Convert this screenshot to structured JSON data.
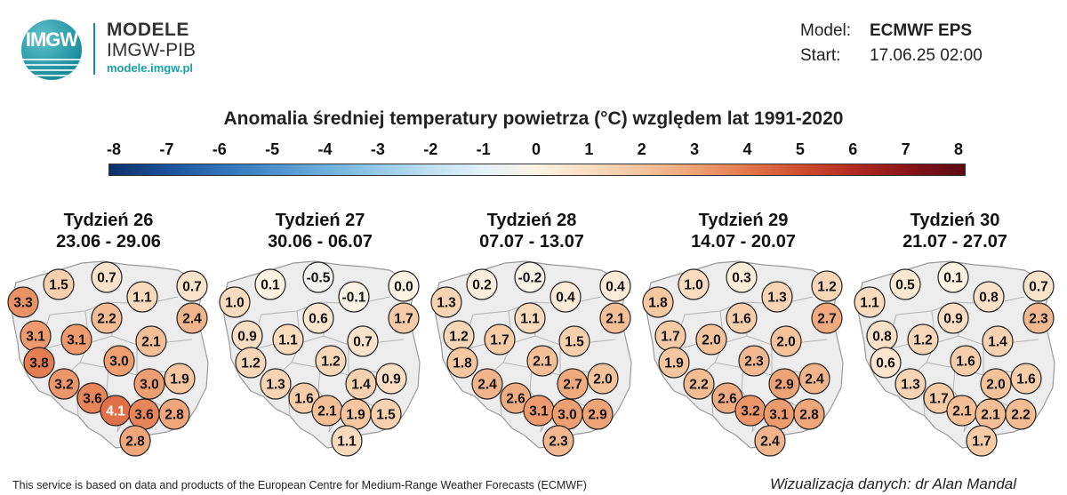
{
  "logo": {
    "text": "IMGW",
    "name": "MODELE",
    "org": "IMGW-PIB",
    "url": "modele.imgw.pl"
  },
  "meta": {
    "model_label": "Model:",
    "model_value": "ECMWF EPS",
    "start_label": "Start:",
    "start_value": "17.06.25 02:00"
  },
  "title": "Anomalia średniej temperatury powietrza (°C) względem lat 1991-2020",
  "scale": {
    "ticks": [
      "-8",
      "-7",
      "-6",
      "-5",
      "-4",
      "-3",
      "-2",
      "-1",
      "0",
      "1",
      "2",
      "3",
      "4",
      "5",
      "6",
      "7",
      "8"
    ],
    "colors": [
      "#0d2f6b",
      "#1a4f96",
      "#2d6fb8",
      "#4a8ecb",
      "#6aaedb",
      "#95c9e8",
      "#bfe0f1",
      "#e3f2f8",
      "#fdf3e3",
      "#f9dcc0",
      "#f5c39b",
      "#ee9f72",
      "#e2744a",
      "#cd4a2c",
      "#b02820",
      "#86131a",
      "#5c0a14"
    ]
  },
  "weeks": [
    {
      "label": "Tydzień 26",
      "dates": "23.06 - 29.06",
      "values": [
        3.3,
        1.5,
        0.7,
        1.1,
        0.7,
        2.2,
        2.4,
        3.1,
        3.1,
        2.1,
        3.8,
        3.0,
        1.9,
        3.2,
        3.0,
        3.6,
        4.1,
        3.6,
        2.8,
        2.8
      ]
    },
    {
      "label": "Tydzień 27",
      "dates": "30.06 - 06.07",
      "values": [
        1.0,
        0.1,
        -0.5,
        -0.1,
        0.0,
        0.6,
        1.7,
        0.9,
        1.1,
        0.7,
        1.2,
        1.2,
        0.9,
        1.3,
        1.4,
        1.6,
        2.1,
        1.9,
        1.5,
        1.1
      ]
    },
    {
      "label": "Tydzień 28",
      "dates": "07.07 - 13.07",
      "values": [
        1.3,
        0.2,
        -0.2,
        0.4,
        0.4,
        1.1,
        2.1,
        1.2,
        1.7,
        1.5,
        1.8,
        2.1,
        2.0,
        2.4,
        2.7,
        2.6,
        3.1,
        3.0,
        2.9,
        2.3
      ]
    },
    {
      "label": "Tydzień 29",
      "dates": "14.07 - 20.07",
      "values": [
        1.8,
        1.0,
        0.3,
        1.3,
        1.2,
        1.6,
        2.7,
        1.7,
        2.0,
        2.0,
        1.9,
        2.3,
        2.4,
        2.2,
        2.9,
        2.6,
        3.2,
        3.1,
        2.8,
        2.4
      ]
    },
    {
      "label": "Tydzień 30",
      "dates": "21.07 - 27.07",
      "values": [
        1.1,
        0.5,
        0.1,
        0.8,
        0.7,
        0.9,
        2.3,
        0.8,
        1.2,
        1.4,
        0.6,
        1.6,
        1.6,
        1.3,
        2.0,
        1.7,
        2.1,
        2.1,
        2.2,
        1.7
      ]
    }
  ],
  "footer": {
    "left": "This service is based on data and products of the European Centre for Medium-Range Weather Forecasts (ECMWF)",
    "right": "Wizualizacja danych: dr Alan Mandal"
  }
}
